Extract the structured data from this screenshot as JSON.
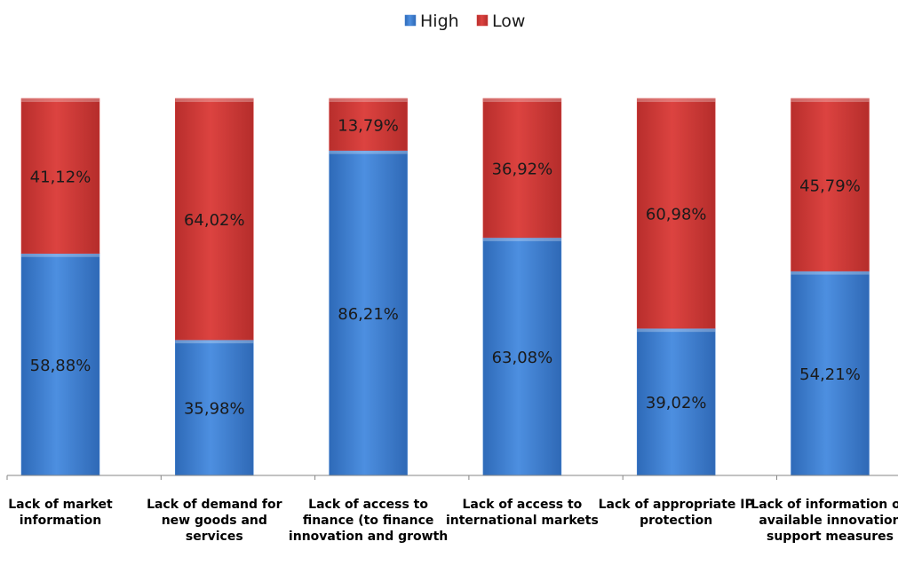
{
  "chart_data": {
    "type": "bar",
    "stacked": true,
    "percent_stacked": true,
    "categories": [
      "Lack of market information",
      "Lack of demand for new goods and services",
      "Lack of access to finance (to finance innovation and growth",
      "Lack of access to international markets",
      "Lack of appropriate IP protection",
      "Lack of information on available innovation support measures"
    ],
    "series": [
      {
        "name": "High",
        "color": "#3e7fd0",
        "values": [
          58.88,
          35.98,
          86.21,
          63.08,
          39.02,
          54.21
        ],
        "labels": [
          "58,88%",
          "35,98%",
          "86,21%",
          "63,08%",
          "39,02%",
          "54,21%"
        ]
      },
      {
        "name": "Low",
        "color": "#d43a38",
        "values": [
          41.12,
          64.02,
          13.79,
          36.92,
          60.98,
          45.79
        ],
        "labels": [
          "41,12%",
          "64,02%",
          "13,79%",
          "36,92%",
          "60,98%",
          "45,79%"
        ]
      }
    ],
    "ylim": [
      0,
      100
    ],
    "grid": false,
    "legend": "top-center",
    "title": "",
    "xlabel": "",
    "ylabel": ""
  }
}
